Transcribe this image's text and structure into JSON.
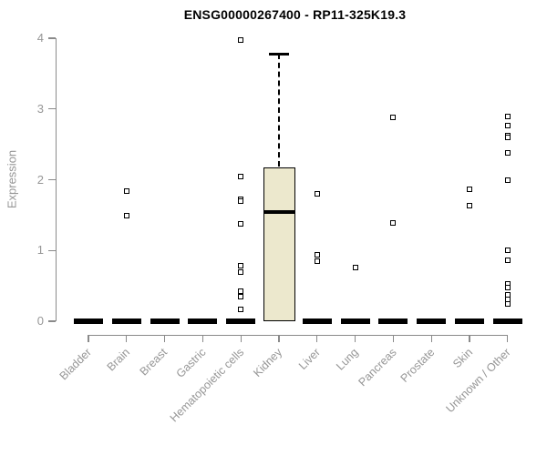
{
  "title": "ENSG00000267400 - RP11-325K19.3",
  "chart_data": {
    "type": "boxplot",
    "title": "ENSG00000267400 - RP11-325K19.3",
    "ylabel": "Expression",
    "xlabel": "",
    "ylim": [
      0,
      4
    ],
    "yticks": [
      0,
      1,
      2,
      3,
      4
    ],
    "grid": false,
    "legend": "none",
    "categories": [
      "Bladder",
      "Brain",
      "Breast",
      "Gastric",
      "Hematopoietic cells",
      "Kidney",
      "Liver",
      "Lung",
      "Pancreas",
      "Prostate",
      "Skin",
      "Unknown / Other"
    ],
    "boxes": [
      {
        "category": "Bladder",
        "q1": 0,
        "median": 0,
        "q3": 0,
        "whisker_low": 0,
        "whisker_high": 0,
        "outliers": []
      },
      {
        "category": "Brain",
        "q1": 0,
        "median": 0,
        "q3": 0,
        "whisker_low": 0,
        "whisker_high": 0,
        "outliers": [
          1.84,
          1.49
        ]
      },
      {
        "category": "Breast",
        "q1": 0,
        "median": 0,
        "q3": 0,
        "whisker_low": 0,
        "whisker_high": 0,
        "outliers": []
      },
      {
        "category": "Gastric",
        "q1": 0,
        "median": 0,
        "q3": 0,
        "whisker_low": 0,
        "whisker_high": 0,
        "outliers": []
      },
      {
        "category": "Hematopoietic cells",
        "q1": 0,
        "median": 0,
        "q3": 0,
        "whisker_low": 0,
        "whisker_high": 0,
        "outliers": [
          3.97,
          2.04,
          1.72,
          1.7,
          1.38,
          0.78,
          0.7,
          0.42,
          0.35,
          0.17
        ]
      },
      {
        "category": "Kidney",
        "q1": 0,
        "median": 1.54,
        "q3": 2.18,
        "whisker_low": 0,
        "whisker_high": 3.78,
        "outliers": []
      },
      {
        "category": "Liver",
        "q1": 0,
        "median": 0,
        "q3": 0,
        "whisker_low": 0,
        "whisker_high": 0,
        "outliers": [
          1.8,
          0.94,
          0.85
        ]
      },
      {
        "category": "Lung",
        "q1": 0,
        "median": 0,
        "q3": 0,
        "whisker_low": 0,
        "whisker_high": 0,
        "outliers": [
          0.76
        ]
      },
      {
        "category": "Pancreas",
        "q1": 0,
        "median": 0,
        "q3": 0,
        "whisker_low": 0,
        "whisker_high": 0,
        "outliers": [
          2.88,
          1.39
        ]
      },
      {
        "category": "Prostate",
        "q1": 0,
        "median": 0,
        "q3": 0,
        "whisker_low": 0,
        "whisker_high": 0,
        "outliers": []
      },
      {
        "category": "Skin",
        "q1": 0,
        "median": 0,
        "q3": 0,
        "whisker_low": 0,
        "whisker_high": 0,
        "outliers": [
          1.86,
          1.63
        ]
      },
      {
        "category": "Unknown / Other",
        "q1": 0,
        "median": 0,
        "q3": 0,
        "whisker_low": 0,
        "whisker_high": 0,
        "outliers": [
          2.89,
          2.76,
          2.63,
          2.6,
          2.38,
          1.99,
          1.0,
          0.86,
          0.53,
          0.48,
          0.37,
          0.31,
          0.24
        ]
      }
    ],
    "colors": {
      "box_fill": "#ece8cd",
      "box_border": "#000000",
      "median": "#000000",
      "outlier": "#000000",
      "axis": "#8a8a8a",
      "tick_label": "#969696",
      "title": "#000000",
      "background": "#ffffff"
    }
  }
}
